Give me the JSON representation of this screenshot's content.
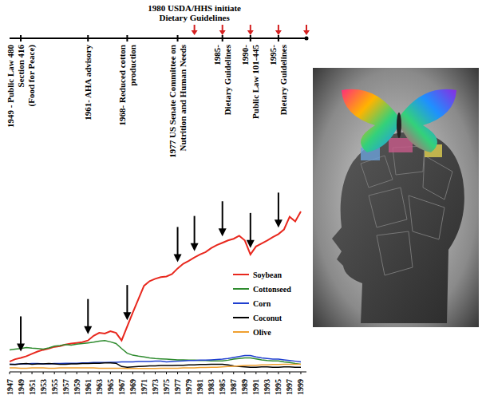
{
  "chart_data": {
    "type": "line",
    "x": [
      1947,
      1948,
      1949,
      1950,
      1951,
      1952,
      1953,
      1954,
      1955,
      1956,
      1957,
      1958,
      1959,
      1960,
      1961,
      1962,
      1963,
      1964,
      1965,
      1966,
      1967,
      1968,
      1969,
      1970,
      1971,
      1972,
      1973,
      1974,
      1975,
      1976,
      1977,
      1978,
      1979,
      1980,
      1981,
      1982,
      1983,
      1984,
      1985,
      1986,
      1987,
      1988,
      1989,
      1990,
      1991,
      1992,
      1993,
      1994,
      1995,
      1996,
      1997,
      1998,
      1999
    ],
    "xlim": [
      1947,
      2000
    ],
    "xticks": [
      1947,
      1949,
      1951,
      1953,
      1955,
      1957,
      1959,
      1961,
      1963,
      1965,
      1967,
      1969,
      1971,
      1973,
      1975,
      1977,
      1979,
      1981,
      1983,
      1985,
      1987,
      1989,
      1991,
      1993,
      1995,
      1997,
      1999
    ],
    "ylim": [
      0,
      100
    ],
    "tick_labels": "x",
    "legend": "lower right",
    "series": [
      {
        "name": "Soybean",
        "color": "#e8281e",
        "values": [
          3.1,
          3.8,
          4.2,
          4.7,
          5.4,
          6.1,
          6.6,
          7.0,
          7.5,
          7.7,
          8.2,
          8.5,
          8.7,
          8.9,
          9.4,
          10.8,
          11.7,
          11.5,
          12.2,
          11.7,
          9.4,
          13.6,
          17.8,
          21.8,
          25.8,
          27.2,
          27.9,
          28.4,
          28.6,
          29.3,
          31.0,
          32.4,
          33.3,
          34.3,
          35.2,
          35.9,
          37.1,
          38.0,
          38.7,
          39.4,
          39.9,
          40.8,
          39.4,
          35.2,
          37.6,
          38.5,
          39.4,
          40.4,
          41.3,
          42.7,
          46.5,
          45.1,
          48.1
        ]
      },
      {
        "name": "Cottonseed",
        "color": "#2e8b2e",
        "values": [
          6.6,
          6.8,
          7.0,
          7.3,
          7.1,
          7.0,
          6.8,
          7.2,
          7.7,
          7.9,
          8.2,
          8.0,
          8.3,
          8.5,
          8.7,
          8.9,
          9.2,
          9.4,
          9.0,
          8.5,
          7.0,
          5.6,
          5.0,
          4.7,
          4.5,
          4.2,
          4.0,
          3.9,
          3.8,
          3.7,
          3.6,
          3.6,
          3.5,
          3.5,
          3.4,
          3.4,
          3.3,
          3.3,
          3.3,
          3.5,
          3.8,
          4.0,
          4.2,
          4.2,
          3.9,
          3.6,
          3.4,
          3.3,
          3.3,
          3.0,
          2.8,
          2.5,
          2.3
        ]
      },
      {
        "name": "Corn",
        "color": "#1f3fcf",
        "values": [
          2.3,
          2.3,
          2.4,
          2.4,
          2.5,
          2.5,
          2.4,
          2.4,
          2.5,
          2.5,
          2.6,
          2.6,
          2.6,
          2.7,
          2.7,
          2.8,
          2.8,
          2.8,
          2.9,
          2.9,
          3.0,
          3.0,
          3.0,
          3.1,
          3.1,
          3.1,
          3.2,
          3.2,
          3.0,
          3.1,
          3.2,
          3.3,
          3.4,
          3.4,
          3.5,
          3.5,
          3.6,
          3.7,
          3.8,
          4.0,
          4.3,
          4.6,
          4.9,
          4.9,
          4.5,
          4.2,
          4.0,
          3.8,
          3.8,
          3.6,
          3.4,
          3.2,
          3.0
        ]
      },
      {
        "name": "Coconut",
        "color": "#000000",
        "values": [
          2.3,
          2.2,
          2.4,
          2.5,
          2.3,
          2.4,
          2.4,
          2.5,
          2.4,
          2.3,
          2.3,
          2.4,
          2.4,
          2.5,
          2.5,
          2.6,
          2.6,
          2.7,
          2.7,
          2.6,
          1.6,
          1.4,
          1.5,
          1.6,
          1.7,
          1.8,
          1.8,
          1.9,
          1.9,
          1.9,
          2.0,
          2.0,
          2.1,
          2.1,
          2.2,
          2.2,
          2.3,
          2.3,
          2.3,
          2.1,
          1.8,
          1.6,
          1.5,
          1.4,
          1.4,
          1.5,
          1.5,
          1.4,
          1.4,
          1.5,
          1.5,
          1.4,
          1.4
        ]
      },
      {
        "name": "Olive",
        "color": "#f0a030",
        "values": [
          1.2,
          1.2,
          1.1,
          1.1,
          1.2,
          1.2,
          1.2,
          1.1,
          1.1,
          1.2,
          1.2,
          1.2,
          1.2,
          1.2,
          1.2,
          1.2,
          1.1,
          1.1,
          1.1,
          1.1,
          1.1,
          1.0,
          1.0,
          1.0,
          1.0,
          1.0,
          1.0,
          1.1,
          1.1,
          1.1,
          1.1,
          1.2,
          1.2,
          1.2,
          1.3,
          1.3,
          1.4,
          1.4,
          1.5,
          1.6,
          1.7,
          1.8,
          1.9,
          2.0,
          2.0,
          2.1,
          2.1,
          2.2,
          2.2,
          2.3,
          2.3,
          2.3,
          2.3
        ]
      }
    ],
    "annotations": [
      {
        "x": 1949,
        "lines": [
          "1949 - Public Law 480",
          "Section 416",
          "(Food for Peace)"
        ]
      },
      {
        "x": 1961,
        "lines": [
          "1961- AHA advisory"
        ]
      },
      {
        "x": 1968,
        "lines": [
          "1968- Reduced cotton",
          "production"
        ]
      },
      {
        "x": 1977,
        "lines": [
          "1977 US Senate Committee on",
          "Nutrition and Human Needs"
        ]
      },
      {
        "x": 1985,
        "lines": [
          "1985-",
          "Dietary Guidelines"
        ]
      },
      {
        "x": 1990,
        "lines": [
          "1990-",
          "Public Law 101-445"
        ]
      },
      {
        "x": 1995,
        "lines": [
          "1995-",
          "Dietary Guidelines"
        ]
      }
    ],
    "top_annotation": {
      "x": 1980,
      "lines": [
        "1980 USDA/HHS initiate",
        "Dietary Guidelines"
      ]
    },
    "guideline_marks": [
      1980,
      1985,
      1990,
      1995,
      2000
    ]
  }
}
